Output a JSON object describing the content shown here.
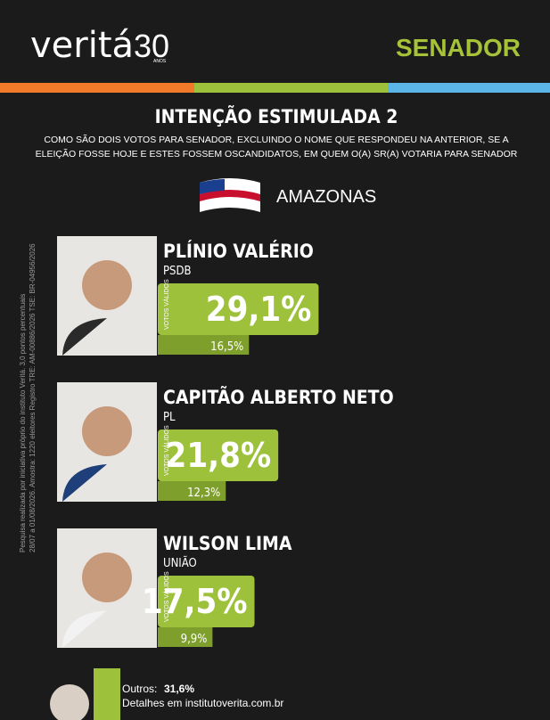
{
  "header": {
    "brand": "veritá",
    "anniversary": "30",
    "anniversary_unit": "ANOS",
    "office": "SENADOR"
  },
  "chart_data": {
    "type": "bar",
    "title": "INTENÇÃO ESTIMULADA 2",
    "subtitle": [
      "COMO SÃO DOIS VOTOS PARA SENADOR, EXCLUINDO O NOME QUE RESPONDEU NA ANTERIOR, SE A",
      "ELEIÇÃO FOSSE HOJE E ESTES FOSSEM OSCANDIDATOS, EM QUEM O(A) SR(A) VOTARIA PARA SENADOR"
    ],
    "region": "AMAZONAS",
    "categories": [
      "PLÍNIO VALÉRIO",
      "CAPITÃO ALBERTO NETO",
      "WILSON LIMA"
    ],
    "parties": [
      "PSDB",
      "PL",
      "UNIÃO"
    ],
    "series": [
      {
        "name": "VOTOS VÁLIDOS",
        "color": "#9dc13b",
        "values": [
          29.1,
          21.8,
          17.5
        ],
        "value_labels": [
          "29,1%",
          "21,8%",
          "17,5%"
        ]
      },
      {
        "color": "#7f9f2c",
        "values": [
          16.5,
          12.3,
          9.9
        ],
        "value_labels": [
          "16,5%",
          "12,3%",
          "9,9%"
        ]
      }
    ],
    "others": {
      "label": "Outros:",
      "value": 31.6,
      "value_label": "31,6%"
    },
    "details": "Detalhes em institutoverita.com.br"
  },
  "note": [
    "Pesquisa realizada por iniciativa próprio do instituto Veritá. 3,0 pontos percentuais",
    "28/07 a 01/08/2026. Amostra: 1220 eleitores Registro TRE: AM-00886/2026 TSE: BR-04956/2026"
  ]
}
